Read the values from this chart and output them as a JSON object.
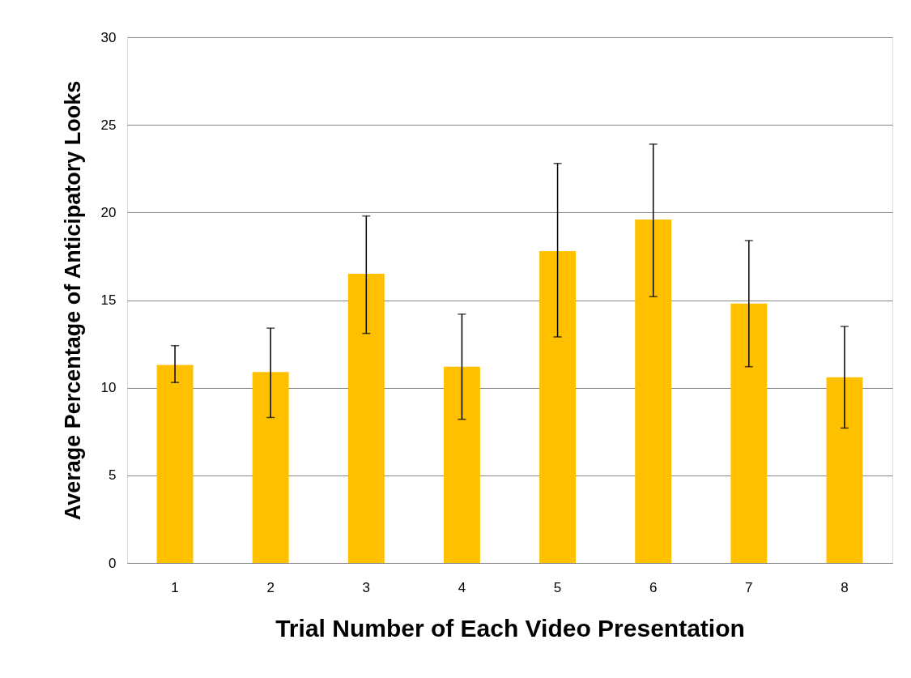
{
  "chart_data": {
    "type": "bar",
    "xlabel": "Trial Number of  Each Video Presentation",
    "ylabel": "Average Percentage of Anticipatory Looks",
    "categories": [
      "1",
      "2",
      "3",
      "4",
      "5",
      "6",
      "7",
      "8"
    ],
    "values": [
      11.3,
      10.9,
      16.5,
      11.2,
      17.8,
      19.6,
      14.8,
      10.6
    ],
    "errors": [
      [
        10.3,
        12.4
      ],
      [
        8.3,
        13.4
      ],
      [
        13.1,
        19.8
      ],
      [
        8.2,
        14.2
      ],
      [
        12.9,
        22.8
      ],
      [
        15.2,
        23.9
      ],
      [
        11.2,
        18.4
      ],
      [
        7.7,
        13.5
      ]
    ],
    "color": "#ffc000",
    "ylim": [
      0,
      30
    ],
    "yticks": [
      0,
      5,
      10,
      15,
      20,
      25,
      30
    ],
    "grid": "y"
  }
}
